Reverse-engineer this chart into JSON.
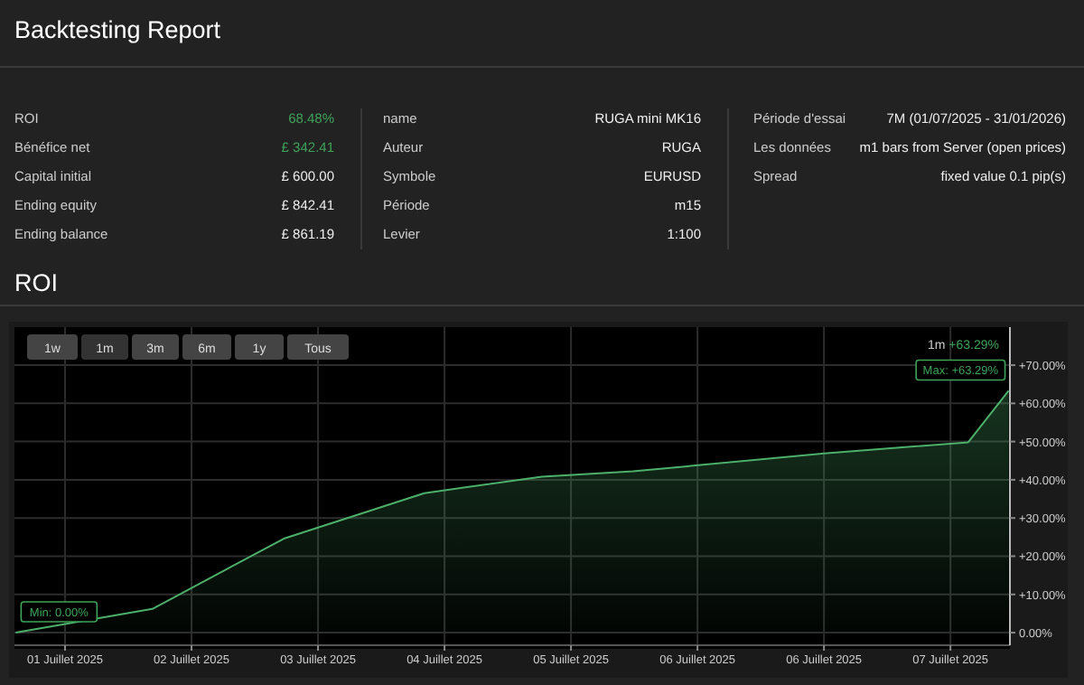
{
  "chart_data": {
    "type": "area",
    "title": "Backtesting Report",
    "subtitle": "ROI",
    "x": [
      "2025-06-30T14:38",
      "2025-07-01T16:34",
      "2025-07-02T17:31",
      "2025-07-03T20:10",
      "2025-07-04T18:29",
      "2025-07-05T11:46",
      "2025-07-07T00:00",
      "2025-07-08T03:22",
      "2025-07-08T11:02"
    ],
    "series": [
      {
        "color": "#4caf6a",
        "values": [
          0,
          6.2,
          24.6,
          36.5,
          40.8,
          42.2,
          46.9,
          49.8,
          63.29
        ]
      }
    ],
    "xlim": [
      "2025-06-30T14:24",
      "2025-07-08T11:17"
    ],
    "xticks": [
      {
        "value": "2025-07-01",
        "label": "01 Juillet 2025"
      },
      {
        "value": "2025-07-02",
        "label": "02 Juillet 2025"
      },
      {
        "value": "2025-07-03",
        "label": "03 Juillet 2025"
      },
      {
        "value": "2025-07-04",
        "label": "04 Juillet 2025"
      },
      {
        "value": "2025-07-05",
        "label": "05 Juillet 2025"
      },
      {
        "value": "2025-07-06",
        "label": "06 Juillet 2025"
      },
      {
        "value": "2025-07-07",
        "label": "06 Juillet 2025"
      },
      {
        "value": "2025-07-08",
        "label": "07 Juillet 2025"
      }
    ],
    "ylim": [
      -3.3,
      79
    ],
    "yticks": [
      {
        "value": 0,
        "label": "0.00%"
      },
      {
        "value": 10,
        "label": "+10.00%"
      },
      {
        "value": 20,
        "label": "+20.00%"
      },
      {
        "value": 30,
        "label": "+30.00%"
      },
      {
        "value": 40,
        "label": "+40.00%"
      },
      {
        "value": 50,
        "label": "+50.00%"
      },
      {
        "value": 60,
        "label": "+60.00%"
      },
      {
        "value": 70,
        "label": "+70.00%"
      }
    ],
    "grid": true,
    "annotations": [
      "ROI",
      "68.48%",
      "Bénéfice net",
      "£ 342.41",
      "Capital initial",
      "£ 600.00",
      "Ending equity",
      "£ 842.41",
      "Ending balance",
      "£ 861.19",
      "name",
      "RUGA mini MK16",
      "Auteur",
      "RUGA",
      "Symbole",
      "EURUSD",
      "Période",
      "m15",
      "Levier",
      "1:100",
      "Période d'essai",
      "7M (01/07/2025 - 31/01/2026)",
      "Les données",
      "m1 bars from Server (open prices)",
      "Spread",
      "fixed value 0.1 pip(s)",
      "1w",
      "1m",
      "3m",
      "6m",
      "1y",
      "Tous",
      "1m",
      "+63.29%",
      {
        "text": "Max: +63.29%",
        "x": "2025-07-08T11:02",
        "y": 63.29
      },
      {
        "text": "Min: 0.00%",
        "x": "2025-06-30T14:38",
        "y": 0
      }
    ]
  }
}
